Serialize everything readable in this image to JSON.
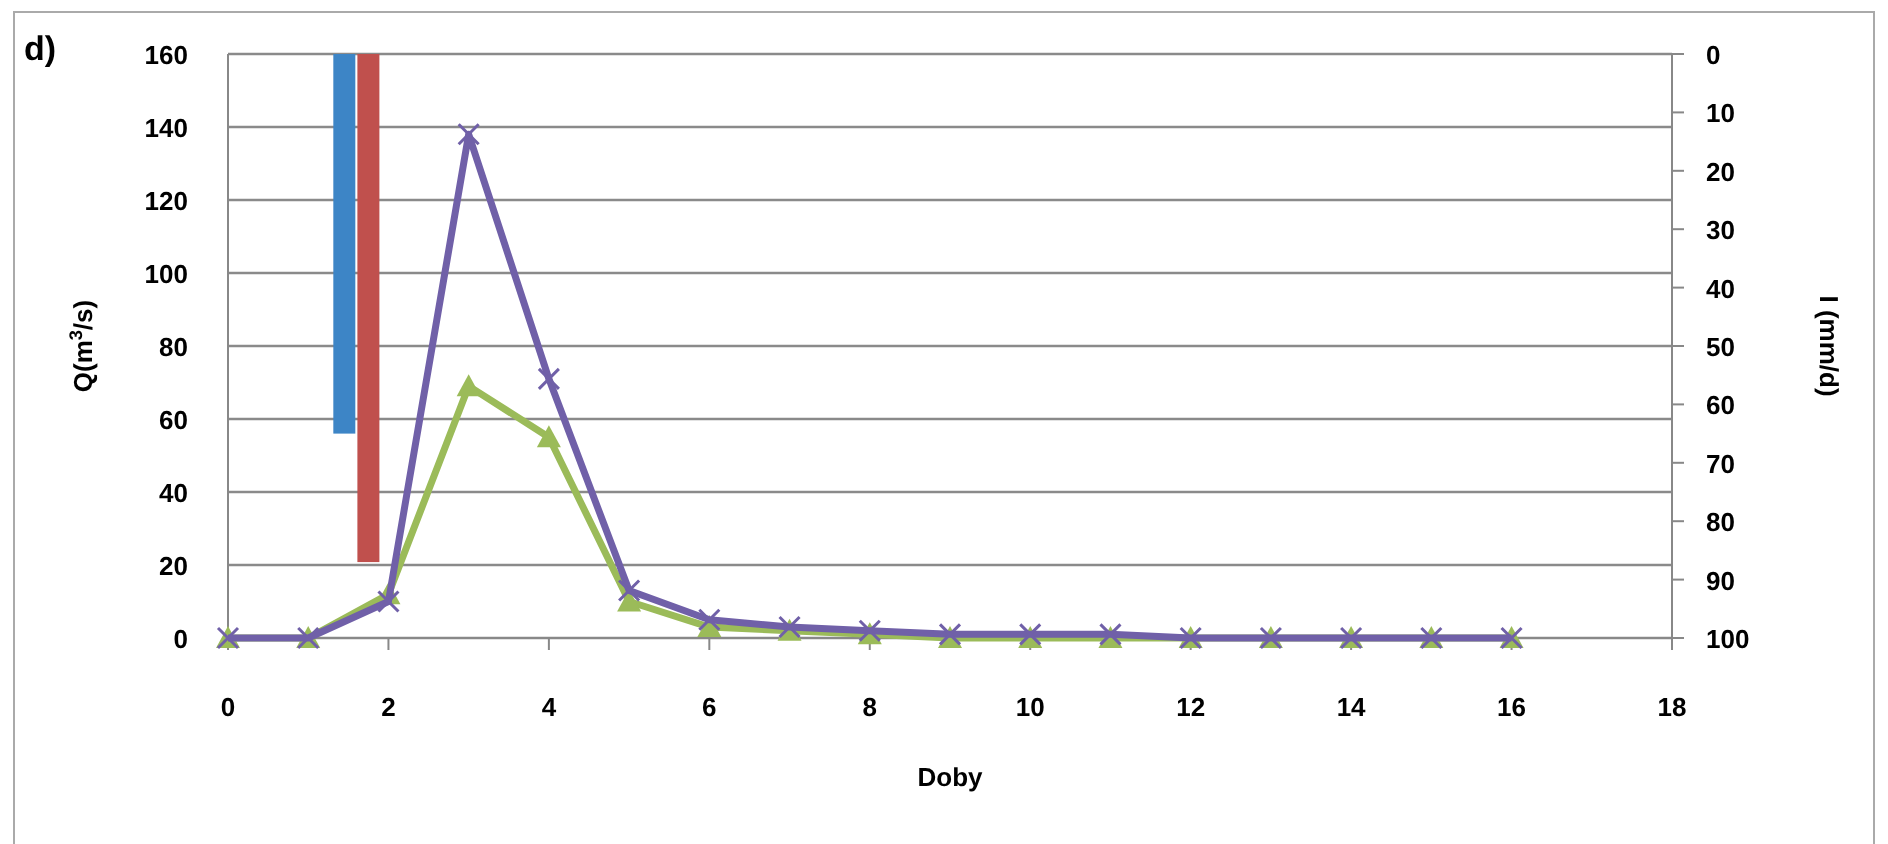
{
  "chart_data": {
    "type": "line",
    "title": "d)",
    "xlabel": "Doby",
    "ylabel": "Q(m$^{3}$/s)",
    "y2label": "I (mm/d)",
    "xlim": [
      0,
      18
    ],
    "xticks": [
      0,
      2,
      4,
      6,
      8,
      10,
      12,
      14,
      16,
      18
    ],
    "ylim": [
      0,
      160
    ],
    "yticks": [
      0,
      20,
      40,
      60,
      80,
      100,
      120,
      140,
      160
    ],
    "y2lim": [
      100,
      0
    ],
    "y2ticks": [
      0,
      10,
      20,
      30,
      40,
      50,
      60,
      70,
      80,
      90,
      100
    ],
    "grid": "y",
    "series": [
      {
        "type": "bar",
        "axis": "y2",
        "color": "#3d85c6",
        "x": [
          1.45
        ],
        "values": [
          65
        ]
      },
      {
        "type": "bar",
        "axis": "y2",
        "color": "#c0504d",
        "x": [
          1.75
        ],
        "values": [
          87
        ]
      },
      {
        "color": "#9bbb59",
        "marker": "triangle",
        "x": [
          0,
          1,
          2,
          3,
          4,
          5,
          6,
          7,
          8,
          9,
          10,
          11,
          12,
          13,
          14,
          15,
          16
        ],
        "values": [
          0,
          0,
          12,
          69,
          55,
          10,
          3,
          2,
          1,
          0,
          0,
          0,
          0,
          0,
          0,
          0,
          0
        ]
      },
      {
        "color": "#7060a8",
        "marker": "cross",
        "x": [
          0,
          1,
          2,
          3,
          4,
          5,
          6,
          7,
          8,
          9,
          10,
          11,
          12,
          13,
          14,
          15,
          16
        ],
        "values": [
          0,
          0,
          10,
          138,
          71,
          13,
          5,
          3,
          2,
          1,
          1,
          1,
          0,
          0,
          0,
          0,
          0
        ]
      }
    ]
  }
}
